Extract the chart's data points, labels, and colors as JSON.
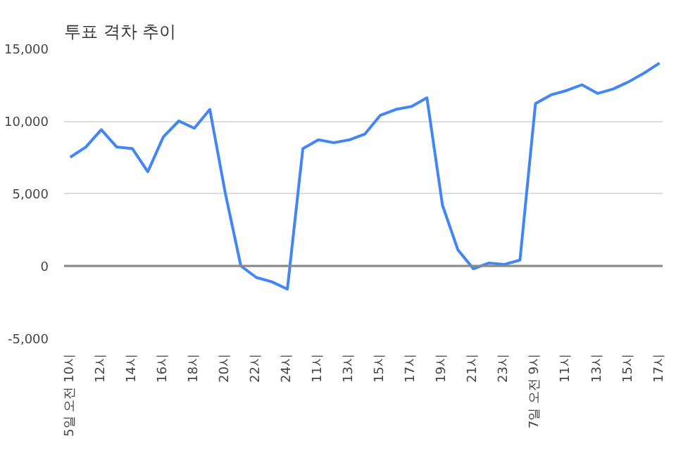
{
  "chart_data": {
    "type": "line",
    "title": "투표 격차 추이",
    "categories": [
      "5일 오전 10시",
      null,
      "12시",
      null,
      "14시",
      null,
      "16시",
      null,
      "18시",
      null,
      "20시",
      null,
      "22시",
      null,
      "24시",
      null,
      "11시",
      null,
      "13시",
      null,
      "15시",
      null,
      "17시",
      null,
      "19시",
      null,
      "21시",
      null,
      "23시",
      null,
      "7일 오전 9시",
      null,
      "11시",
      null,
      "13시",
      null,
      "15시",
      null,
      "17시"
    ],
    "series": [
      {
        "color": "#4285f4",
        "values": [
          7500,
          8200,
          9400,
          8200,
          8100,
          6500,
          8900,
          10000,
          9500,
          10800,
          5000,
          0,
          -800,
          -1100,
          -1600,
          8100,
          8700,
          8500,
          8700,
          9100,
          10400,
          10800,
          11000,
          11600,
          4200,
          1100,
          -200,
          200,
          100,
          400,
          11200,
          11800,
          12100,
          12500,
          11900,
          12200,
          12700,
          13300,
          14000
        ]
      }
    ],
    "ylim": [
      -5000,
      15000
    ],
    "yticks": [
      {
        "value": -5000,
        "label": "-5,000"
      },
      {
        "value": 0,
        "label": "0"
      },
      {
        "value": 5000,
        "label": "5,000"
      },
      {
        "value": 10000,
        "label": "10,000"
      },
      {
        "value": 15000,
        "label": "15,000"
      }
    ],
    "grid": "y",
    "marker": "none",
    "line_style": "solid",
    "ref_lines": [
      {
        "axis": "y",
        "value": 0,
        "label": null,
        "color": "#888888"
      }
    ]
  }
}
